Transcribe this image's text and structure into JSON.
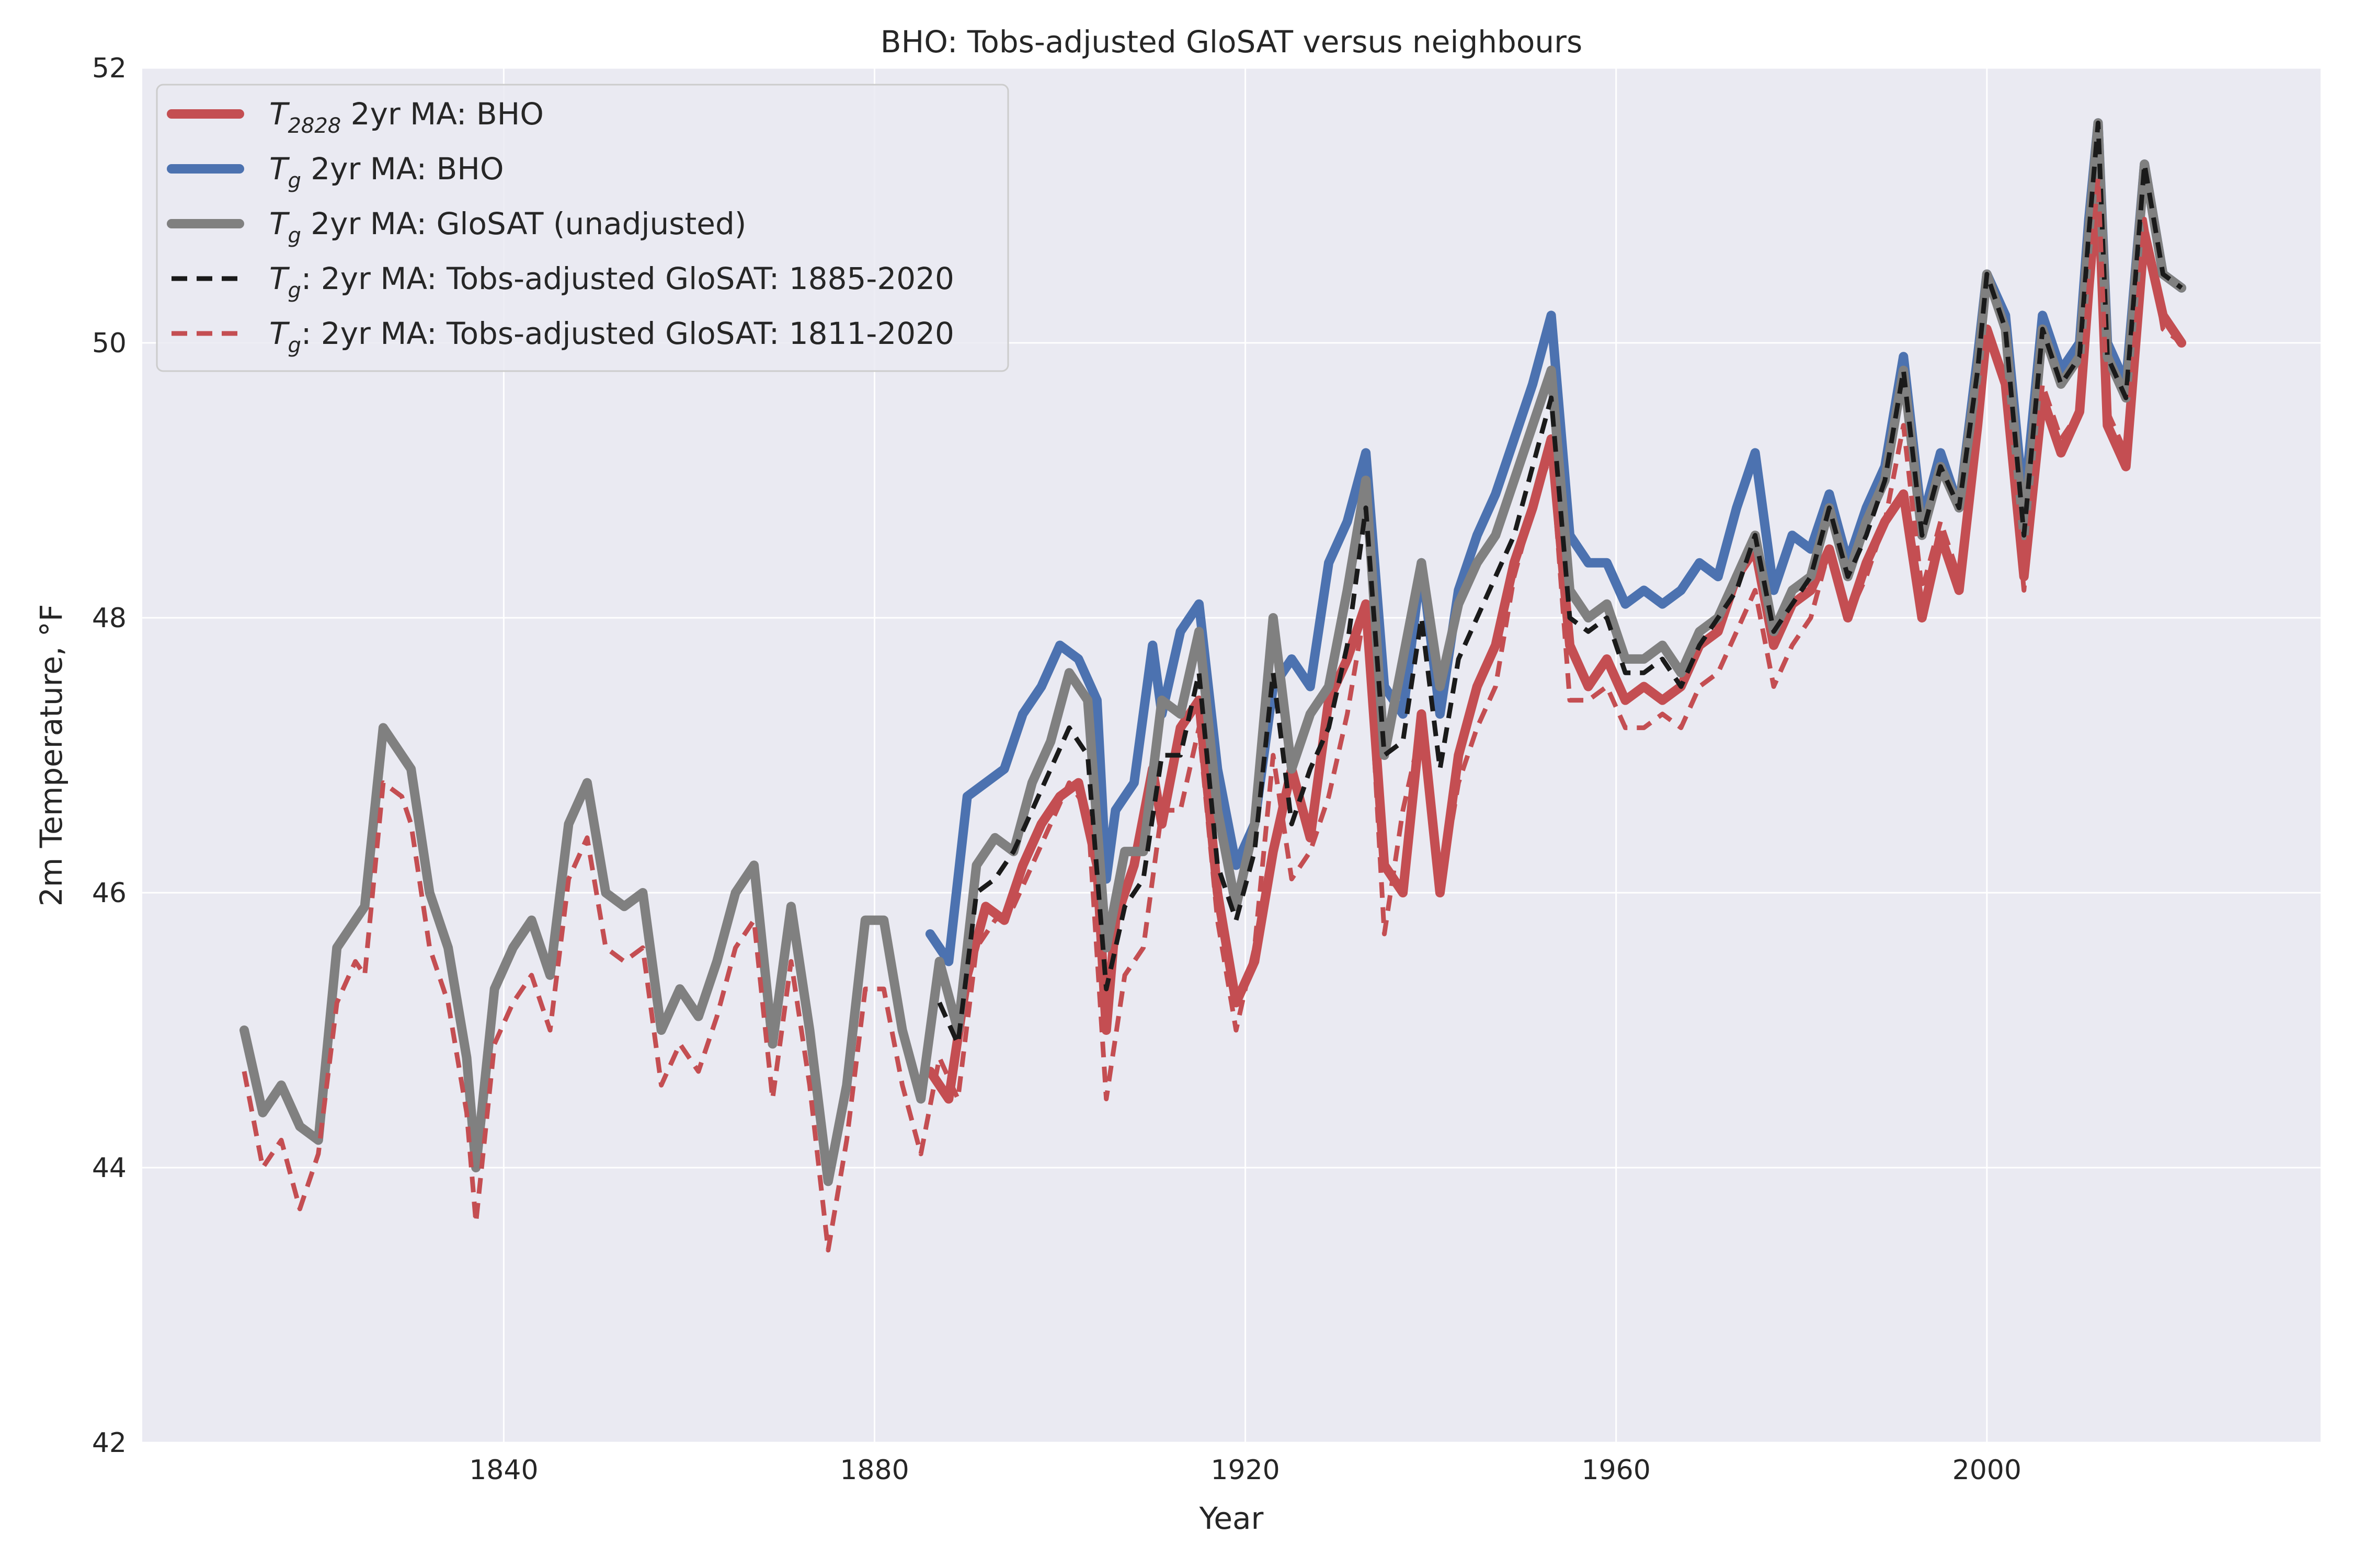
{
  "chart_data": {
    "type": "line",
    "title": "BHO: Tobs-adjusted GloSAT versus neighbours",
    "xlabel": "Year",
    "ylabel": "2m Temperature, °F",
    "xlim": [
      1801,
      2036
    ],
    "ylim": [
      42,
      52
    ],
    "xticks": [
      1840,
      1880,
      1920,
      1960,
      2000
    ],
    "yticks": [
      42,
      44,
      46,
      48,
      50,
      52
    ],
    "grid": true,
    "legend_position": "top-left",
    "series": [
      {
        "name": "T2828 2yr MA: BHO",
        "legend_main": "T",
        "legend_sub": "2828",
        "legend_rest": " 2yr MA: BHO",
        "color": "#c44e52",
        "style": "solid",
        "x": [
          1886,
          1888,
          1890,
          1892,
          1894,
          1896,
          1898,
          1900,
          1902,
          1904,
          1905,
          1906,
          1908,
          1910,
          1911,
          1913,
          1915,
          1917,
          1919,
          1921,
          1923,
          1925,
          1927,
          1929,
          1931,
          1933,
          1935,
          1937,
          1939,
          1941,
          1943,
          1945,
          1947,
          1949,
          1951,
          1953,
          1955,
          1957,
          1959,
          1961,
          1963,
          1965,
          1967,
          1969,
          1971,
          1973,
          1975,
          1977,
          1979,
          1981,
          1983,
          1985,
          1987,
          1989,
          1991,
          1993,
          1995,
          1997,
          1999,
          2000,
          2002,
          2004,
          2006,
          2008,
          2010,
          2011,
          2012,
          2013,
          2015,
          2017,
          2019,
          2021
        ],
        "y": [
          44.7,
          44.5,
          45.4,
          45.9,
          45.8,
          46.2,
          46.5,
          46.7,
          46.8,
          46.2,
          45.0,
          45.8,
          46.2,
          46.9,
          46.5,
          47.2,
          47.4,
          46.0,
          45.2,
          45.5,
          46.3,
          46.9,
          46.4,
          47.4,
          47.7,
          48.1,
          46.2,
          46.0,
          47.3,
          46.0,
          47.0,
          47.5,
          47.8,
          48.4,
          48.8,
          49.3,
          47.8,
          47.5,
          47.7,
          47.4,
          47.5,
          47.4,
          47.5,
          47.8,
          47.9,
          48.3,
          48.5,
          47.8,
          48.1,
          48.2,
          48.5,
          48.0,
          48.4,
          48.7,
          48.9,
          48.0,
          48.6,
          48.2,
          49.4,
          50.1,
          49.7,
          48.3,
          49.6,
          49.2,
          49.5,
          50.4,
          51.2,
          49.4,
          49.1,
          50.8,
          50.2,
          50.0
        ]
      },
      {
        "name": "Tg 2yr MA: BHO",
        "legend_main": "T",
        "legend_sub": "g",
        "legend_rest": " 2yr MA: BHO",
        "color": "#4c72b0",
        "style": "solid",
        "x": [
          1886,
          1888,
          1890,
          1892,
          1894,
          1896,
          1898,
          1900,
          1902,
          1904,
          1905,
          1906,
          1908,
          1910,
          1911,
          1913,
          1915,
          1917,
          1919,
          1921,
          1923,
          1925,
          1927,
          1929,
          1931,
          1933,
          1935,
          1937,
          1939,
          1941,
          1943,
          1945,
          1947,
          1949,
          1951,
          1953,
          1955,
          1957,
          1959,
          1961,
          1963,
          1965,
          1967,
          1969,
          1971,
          1973,
          1975,
          1977,
          1979,
          1981,
          1983,
          1985,
          1987,
          1989,
          1991,
          1993,
          1995,
          1997,
          1999,
          2000,
          2002,
          2004,
          2006,
          2008,
          2010,
          2011,
          2012,
          2013,
          2015,
          2017,
          2019,
          2021
        ],
        "y": [
          45.7,
          45.5,
          46.7,
          46.8,
          46.9,
          47.3,
          47.5,
          47.8,
          47.7,
          47.4,
          46.1,
          46.6,
          46.8,
          47.8,
          47.3,
          47.9,
          48.1,
          46.9,
          46.2,
          46.5,
          47.5,
          47.7,
          47.5,
          48.4,
          48.7,
          49.2,
          47.5,
          47.3,
          48.4,
          47.3,
          48.2,
          48.6,
          48.9,
          49.3,
          49.7,
          50.2,
          48.6,
          48.4,
          48.4,
          48.1,
          48.2,
          48.1,
          48.2,
          48.4,
          48.3,
          48.8,
          49.2,
          48.2,
          48.6,
          48.5,
          48.9,
          48.4,
          48.8,
          49.1,
          49.9,
          48.7,
          49.2,
          48.8,
          49.9,
          50.5,
          50.2,
          48.8,
          50.2,
          49.8,
          50.0,
          50.9,
          51.6,
          50.0,
          49.7,
          51.3,
          50.5,
          50.4
        ]
      },
      {
        "name": "Tg 2yr MA: GloSAT (unadjusted)",
        "legend_main": "T",
        "legend_sub": "g",
        "legend_rest": " 2yr MA: GloSAT (unadjusted)",
        "color": "#808080",
        "style": "solid",
        "x": [
          1812,
          1814,
          1816,
          1818,
          1820,
          1822,
          1824,
          1825,
          1827,
          1829,
          1830,
          1832,
          1834,
          1836,
          1837,
          1839,
          1841,
          1843,
          1845,
          1847,
          1849,
          1851,
          1853,
          1855,
          1857,
          1859,
          1861,
          1863,
          1865,
          1867,
          1869,
          1871,
          1873,
          1875,
          1877,
          1879,
          1881,
          1883,
          1885,
          1887,
          1889,
          1891,
          1893,
          1895,
          1897,
          1899,
          1901,
          1903,
          1905,
          1907,
          1909,
          1911,
          1913,
          1915,
          1917,
          1919,
          1921,
          1923,
          1925,
          1927,
          1929,
          1931,
          1933,
          1935,
          1937,
          1939,
          1941,
          1943,
          1945,
          1947,
          1949,
          1951,
          1953,
          1955,
          1957,
          1959,
          1961,
          1963,
          1965,
          1967,
          1969,
          1971,
          1973,
          1975,
          1977,
          1979,
          1981,
          1983,
          1985,
          1987,
          1989,
          1991,
          1993,
          1995,
          1997,
          1999,
          2000,
          2002,
          2004,
          2006,
          2008,
          2010,
          2011,
          2012,
          2013,
          2015,
          2017,
          2019,
          2021
        ],
        "y": [
          45.0,
          44.4,
          44.6,
          44.3,
          44.2,
          45.6,
          45.8,
          45.9,
          47.2,
          47.0,
          46.9,
          46.0,
          45.6,
          44.8,
          44.0,
          45.3,
          45.6,
          45.8,
          45.4,
          46.5,
          46.8,
          46.0,
          45.9,
          46.0,
          45.0,
          45.3,
          45.1,
          45.5,
          46.0,
          46.2,
          44.9,
          45.9,
          45.0,
          43.9,
          44.6,
          45.8,
          45.8,
          45.0,
          44.5,
          45.5,
          45.0,
          46.2,
          46.4,
          46.3,
          46.8,
          47.1,
          47.6,
          47.4,
          45.6,
          46.3,
          46.3,
          47.4,
          47.3,
          47.9,
          46.6,
          45.9,
          46.5,
          48.0,
          46.9,
          47.3,
          47.5,
          48.2,
          49.0,
          47.0,
          47.7,
          48.4,
          47.5,
          48.1,
          48.4,
          48.6,
          49.0,
          49.4,
          49.8,
          48.2,
          48.0,
          48.1,
          47.7,
          47.7,
          47.8,
          47.6,
          47.9,
          48.0,
          48.3,
          48.6,
          47.9,
          48.2,
          48.3,
          48.8,
          48.3,
          48.7,
          49.0,
          49.8,
          48.6,
          49.1,
          48.8,
          49.8,
          50.5,
          50.1,
          48.6,
          50.1,
          49.7,
          49.9,
          50.8,
          51.6,
          49.9,
          49.6,
          51.3,
          50.5,
          50.4
        ]
      },
      {
        "name": "Tg: 2yr MA: Tobs-adjusted GloSAT: 1885-2020",
        "legend_main": "T",
        "legend_sub": "g",
        "legend_rest": ": 2yr MA: Tobs-adjusted GloSAT: 1885-2020",
        "color": "#1a1a1a",
        "style": "dashed",
        "x": [
          1887,
          1889,
          1891,
          1893,
          1895,
          1897,
          1899,
          1901,
          1903,
          1905,
          1907,
          1909,
          1911,
          1913,
          1915,
          1917,
          1919,
          1921,
          1923,
          1925,
          1927,
          1929,
          1931,
          1933,
          1935,
          1937,
          1939,
          1941,
          1943,
          1945,
          1947,
          1949,
          1951,
          1953,
          1955,
          1957,
          1959,
          1961,
          1963,
          1965,
          1967,
          1969,
          1971,
          1973,
          1975,
          1977,
          1979,
          1981,
          1983,
          1985,
          1987,
          1989,
          1991,
          1993,
          1995,
          1997,
          1999,
          2000,
          2002,
          2004,
          2006,
          2008,
          2010,
          2011,
          2012,
          2013,
          2015,
          2017,
          2019,
          2021
        ],
        "y": [
          45.2,
          44.9,
          46.0,
          46.1,
          46.3,
          46.6,
          46.9,
          47.2,
          47.0,
          45.3,
          45.9,
          46.1,
          47.0,
          47.0,
          47.6,
          46.2,
          45.8,
          46.3,
          47.6,
          46.5,
          46.9,
          47.2,
          47.8,
          48.8,
          47.0,
          47.1,
          48.0,
          46.9,
          47.7,
          48.0,
          48.3,
          48.6,
          49.1,
          49.6,
          48.0,
          47.9,
          48.0,
          47.6,
          47.6,
          47.7,
          47.5,
          47.8,
          48.0,
          48.2,
          48.6,
          47.9,
          48.1,
          48.3,
          48.8,
          48.3,
          48.6,
          49.0,
          49.8,
          48.6,
          49.1,
          48.8,
          49.8,
          50.5,
          50.1,
          48.6,
          50.1,
          49.7,
          49.9,
          50.8,
          51.6,
          49.9,
          49.6,
          51.3,
          50.5,
          50.4
        ]
      },
      {
        "name": "Tg: 2yr MA: Tobs-adjusted GloSAT: 1811-2020",
        "legend_main": "T",
        "legend_sub": "g",
        "legend_rest": ": 2yr MA: Tobs-adjusted GloSAT: 1811-2020",
        "color": "#c44e52",
        "style": "dashed",
        "x": [
          1812,
          1814,
          1816,
          1818,
          1820,
          1822,
          1824,
          1825,
          1827,
          1829,
          1830,
          1832,
          1834,
          1836,
          1837,
          1839,
          1841,
          1843,
          1845,
          1847,
          1849,
          1851,
          1853,
          1855,
          1857,
          1859,
          1861,
          1863,
          1865,
          1867,
          1869,
          1871,
          1873,
          1875,
          1877,
          1879,
          1881,
          1883,
          1885,
          1887,
          1889,
          1891,
          1893,
          1895,
          1897,
          1899,
          1901,
          1903,
          1905,
          1907,
          1909,
          1911,
          1913,
          1915,
          1917,
          1919,
          1921,
          1923,
          1925,
          1927,
          1929,
          1931,
          1933,
          1935,
          1937,
          1939,
          1941,
          1943,
          1945,
          1947,
          1949,
          1951,
          1953,
          1955,
          1957,
          1959,
          1961,
          1963,
          1965,
          1967,
          1969,
          1971,
          1973,
          1975,
          1977,
          1979,
          1981,
          1983,
          1985,
          1987,
          1989,
          1991,
          1993,
          1995,
          1997,
          1999,
          2000,
          2002,
          2004,
          2006,
          2008,
          2010,
          2011,
          2012,
          2013,
          2015,
          2017,
          2019,
          2021
        ],
        "y": [
          44.7,
          44.0,
          44.2,
          43.7,
          44.1,
          45.2,
          45.5,
          45.4,
          46.8,
          46.7,
          46.5,
          45.6,
          45.2,
          44.4,
          43.6,
          44.9,
          45.2,
          45.4,
          45.0,
          46.1,
          46.4,
          45.6,
          45.5,
          45.6,
          44.6,
          44.9,
          44.7,
          45.1,
          45.6,
          45.8,
          44.5,
          45.5,
          44.6,
          43.4,
          44.2,
          45.3,
          45.3,
          44.6,
          44.1,
          44.8,
          44.5,
          45.6,
          45.8,
          45.9,
          46.2,
          46.5,
          46.8,
          46.6,
          44.5,
          45.4,
          45.6,
          46.6,
          46.6,
          47.2,
          45.8,
          45.0,
          45.6,
          47.0,
          46.1,
          46.3,
          46.7,
          47.3,
          48.1,
          45.7,
          46.6,
          47.2,
          46.0,
          46.8,
          47.2,
          47.5,
          48.3,
          48.8,
          49.2,
          47.4,
          47.4,
          47.5,
          47.2,
          47.2,
          47.3,
          47.2,
          47.5,
          47.6,
          47.9,
          48.2,
          47.5,
          47.8,
          48.0,
          48.5,
          48.0,
          48.3,
          48.7,
          49.4,
          48.2,
          48.7,
          48.3,
          49.4,
          50.1,
          49.7,
          48.2,
          49.7,
          49.3,
          49.5,
          50.4,
          51.2,
          49.5,
          49.2,
          50.9,
          50.1,
          50.0
        ]
      }
    ]
  }
}
